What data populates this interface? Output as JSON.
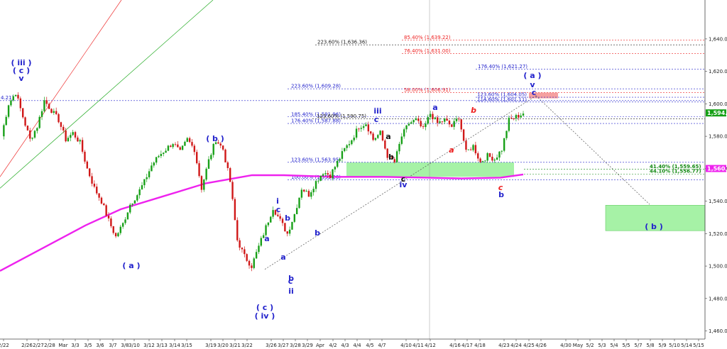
{
  "chart_data": {
    "type": "candlestick",
    "y_axis": {
      "ticks": [
        "1,460.00",
        "1,480.00",
        "1,500.00",
        "1,520.00",
        "1,540.00",
        "1,560.00",
        "1,580.00",
        "1,600.00",
        "1,620.00",
        "1,640.00"
      ],
      "range": [
        1455,
        1664
      ]
    },
    "x_axis": {
      "ticks": [
        "2/22",
        "2/26",
        "2/27",
        "2/28",
        "Mar",
        "3/3",
        "3/5",
        "3/6",
        "3/7",
        "3/8",
        "3/10",
        "3/12",
        "3/13",
        "3/14",
        "3/15",
        "3/19",
        "3/20",
        "3/21",
        "3/22",
        "3/26",
        "3/27",
        "3/28",
        "3/29",
        "Apr",
        "4/2",
        "4/3",
        "4/4",
        "4/5",
        "4/7",
        "4/10",
        "4/11",
        "4/12",
        "4/16",
        "4/17",
        "4/18",
        "4/23",
        "4/24",
        "4/25",
        "4/26",
        "4/30",
        "May",
        "5/2",
        "5/3",
        "5/4",
        "5/5",
        "5/7",
        "5/8",
        "5/9",
        "5/10",
        "5/14",
        "5/15"
      ]
    },
    "price_path": [
      1580,
      1600,
      1607,
      1592,
      1578,
      1586,
      1602,
      1596,
      1590,
      1578,
      1582,
      1576,
      1560,
      1548,
      1540,
      1528,
      1518,
      1526,
      1538,
      1544,
      1552,
      1562,
      1568,
      1572,
      1576,
      1570,
      1578,
      1572,
      1548,
      1565,
      1578,
      1572,
      1552,
      1516,
      1506,
      1500,
      1512,
      1524,
      1536,
      1528,
      1520,
      1532,
      1548,
      1544,
      1552,
      1558,
      1556,
      1564,
      1572,
      1578,
      1586,
      1588,
      1578,
      1582,
      1568,
      1564,
      1580,
      1588,
      1590,
      1584,
      1594,
      1588,
      1590,
      1586,
      1592,
      1570,
      1574,
      1564,
      1568,
      1566,
      1572,
      1590,
      1592,
      1594
    ],
    "last_price": "1,594.40",
    "ma_price": "1,560.14",
    "fib_levels": [
      {
        "label": "223.60% (1,636.36)",
        "value": 1636.36,
        "color": "#222222"
      },
      {
        "label": "85.40% (1,639.22)",
        "value": 1639.22,
        "color": "#ee2020"
      },
      {
        "label": "76.40% (1,631.00)",
        "value": 1631.0,
        "color": "#ee2020"
      },
      {
        "label": "176.40% (1,621.27)",
        "value": 1621.27,
        "color": "#2222cc"
      },
      {
        "label": "223.60% (1,609.28)",
        "value": 1609.28,
        "color": "#2222cc"
      },
      {
        "label": "58.00% (1,606.91)",
        "value": 1606.91,
        "color": "#ee2020"
      },
      {
        "label": "123.60% (1,604.05)",
        "value": 1604.05,
        "color": "#2222cc"
      },
      {
        "label": "114.60% (1,601.11)",
        "value": 1601.11,
        "color": "#2222cc"
      },
      {
        "label": "185.40% (1,591.96)",
        "value": 1591.96,
        "color": "#2222cc"
      },
      {
        "label": "123.60% (1,590.75)",
        "value": 1590.75,
        "color": "#222222"
      },
      {
        "label": "176.40% (1,587.88)",
        "value": 1587.88,
        "color": "#2222cc"
      },
      {
        "label": "123.60% (1,563.95)",
        "value": 1563.95,
        "color": "#2222cc"
      },
      {
        "label": "100.00% (1,553.26)",
        "value": 1553.26,
        "color": "#2222cc"
      },
      {
        "label": "41.40% (1,559.65)",
        "value": 1559.65,
        "color": "#118811"
      },
      {
        "label": "44.10% (1,556.77)",
        "value": 1556.77,
        "color": "#118811"
      }
    ],
    "left_edge_label": "4.21)",
    "wave_labels": [
      {
        "text": "( iii )",
        "color": "#2222cc"
      },
      {
        "text": "( c )",
        "color": "#2222cc"
      },
      {
        "text": "v",
        "color": "#2222cc"
      },
      {
        "text": "( b )",
        "color": "#2222cc"
      },
      {
        "text": "( a )",
        "color": "#2222cc"
      },
      {
        "text": "( c )",
        "color": "#2222cc"
      },
      {
        "text": "( iv )",
        "color": "#2222cc"
      },
      {
        "text": "a",
        "color": "#2222cc"
      },
      {
        "text": "i",
        "color": "#2222cc"
      },
      {
        "text": "c",
        "color": "#2222cc"
      },
      {
        "text": "b",
        "color": "#2222cc"
      },
      {
        "text": "a",
        "color": "#2222cc"
      },
      {
        "text": "b",
        "color": "#2222cc"
      },
      {
        "text": "c",
        "color": "#2222cc"
      },
      {
        "text": "ii",
        "color": "#2222cc"
      },
      {
        "text": "b",
        "color": "#2222cc"
      },
      {
        "text": "iii",
        "color": "#2222cc"
      },
      {
        "text": "c",
        "color": "#2222cc"
      },
      {
        "text": "a",
        "color": "#111111"
      },
      {
        "text": "b",
        "color": "#111111"
      },
      {
        "text": "c",
        "color": "#111111"
      },
      {
        "text": "iv",
        "color": "#2222cc"
      },
      {
        "text": "a",
        "color": "#2222cc"
      },
      {
        "text": "b",
        "color": "#ee2020"
      },
      {
        "text": "a",
        "color": "#ee2020"
      },
      {
        "text": "c",
        "color": "#ee2020"
      },
      {
        "text": "b",
        "color": "#2222cc"
      },
      {
        "text": "( a )",
        "color": "#2222cc"
      },
      {
        "text": "v",
        "color": "#2222cc"
      },
      {
        "text": "c",
        "color": "#2222cc"
      },
      {
        "text": "( b )",
        "color": "#2222cc"
      }
    ],
    "colors": {
      "up": "#18a018",
      "down": "#d01818",
      "ma": "#ee22ee",
      "green_zone": "#88ee88",
      "red_zone": "#f5a0a0",
      "axis": "#444444"
    }
  }
}
